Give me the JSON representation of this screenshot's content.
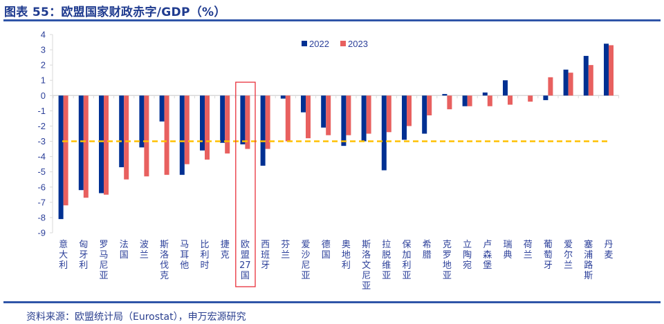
{
  "header": {
    "title": "图表 55：欧盟国家财政赤字/GDP（%）"
  },
  "footer": {
    "source": "资料来源：欧盟统计局（Eurostat），申万宏源研究"
  },
  "colors": {
    "series_2022": "#003092",
    "series_2023": "#e8605f",
    "reference_line": "#ffc000",
    "highlight_box": "#e8303a",
    "text": "#2b3f99",
    "rule": "#2f55a8"
  },
  "chart_data": {
    "type": "bar",
    "title": "欧盟国家财政赤字/GDP（%）",
    "xlabel": "",
    "ylabel": "",
    "ylim": [
      -9,
      4
    ],
    "yticks": [
      4,
      3,
      2,
      1,
      0,
      -1,
      -2,
      -3,
      -4,
      -5,
      -6,
      -7,
      -8,
      -9
    ],
    "grid": false,
    "legend_position": "top-center",
    "categories": [
      "意大利",
      "匈牙利",
      "罗马尼亚",
      "法国",
      "波兰",
      "斯洛伐克",
      "马耳他",
      "比利时",
      "捷克",
      "欧盟27国",
      "西班牙",
      "芬兰",
      "爱沙尼亚",
      "德国",
      "奥地利",
      "斯洛文尼亚",
      "拉脱维亚",
      "保加利亚",
      "希腊",
      "克罗地亚",
      "立陶宛",
      "卢森堡",
      "瑞典",
      "荷兰",
      "葡萄牙",
      "爱尔兰",
      "塞浦路斯",
      "丹麦"
    ],
    "series": [
      {
        "name": "2022",
        "values": [
          -8.1,
          -6.2,
          -6.4,
          -4.7,
          -3.4,
          -1.7,
          -5.2,
          -3.6,
          -3.1,
          -3.2,
          -4.6,
          -0.2,
          -1.1,
          -2.1,
          -3.3,
          -3.0,
          -4.9,
          -2.9,
          -2.5,
          0.1,
          -0.7,
          0.2,
          1.0,
          0.0,
          -0.3,
          1.7,
          2.6,
          3.4
        ]
      },
      {
        "name": "2023",
        "values": [
          -7.2,
          -6.7,
          -6.5,
          -5.5,
          -5.3,
          -5.2,
          -4.5,
          -4.2,
          -3.8,
          -3.5,
          -3.5,
          -3.0,
          -2.8,
          -2.6,
          -2.6,
          -2.5,
          -2.4,
          -2.0,
          -1.3,
          -0.9,
          -0.7,
          -0.7,
          -0.6,
          -0.4,
          1.2,
          1.5,
          2.0,
          3.3
        ]
      }
    ],
    "reference_line": {
      "value": -3,
      "style": "dashed",
      "label": ""
    },
    "highlighted_category": "欧盟27国",
    "legend": [
      "2022",
      "2023"
    ]
  }
}
